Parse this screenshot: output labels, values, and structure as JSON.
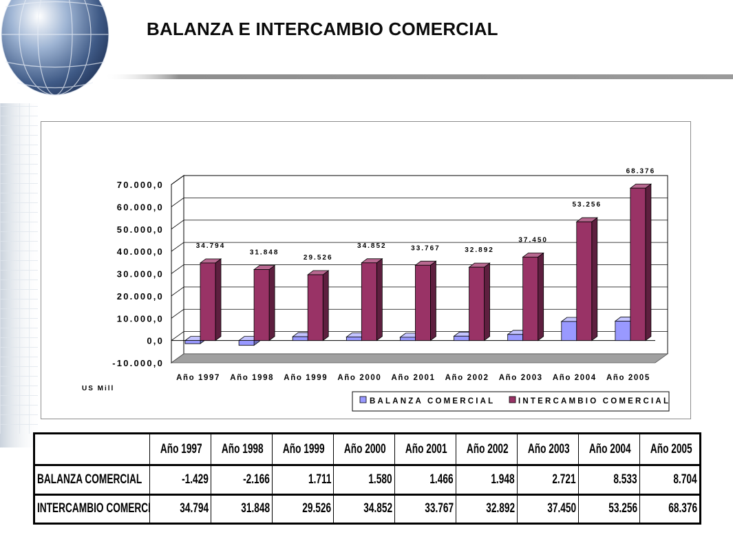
{
  "slide": {
    "title": "BALANZA E INTERCAMBIO COMERCIAL"
  },
  "colors": {
    "balanza": "#9999ff",
    "intercambio": "#993366",
    "floor": "#a0a0a0",
    "accent_bar": "#9a9a9a"
  },
  "chart_data": {
    "type": "bar",
    "title": "",
    "xlabel": "",
    "ylabel": "US Mill",
    "ylim": [
      -10000,
      70000
    ],
    "y_ticks": [
      -10000,
      0,
      10000,
      20000,
      30000,
      40000,
      50000,
      60000,
      70000
    ],
    "y_tick_labels": [
      "-10.000,0",
      "0,0",
      "10.000,0",
      "20.000,0",
      "30.000,0",
      "40.000,0",
      "50.000,0",
      "60.000,0",
      "70.000,0"
    ],
    "grid": true,
    "legend_position": "bottom-right",
    "categories": [
      "Año  1997",
      "Año  1998",
      "Año  1999",
      "Año  2000",
      "Año 2001",
      "Año 2002",
      "Año 2003",
      "Año 2004",
      "Año 2005"
    ],
    "series": [
      {
        "name": "BALANZA COMERCIAL",
        "color": "#9999ff",
        "values": [
          -1429,
          -2166,
          1711,
          1580,
          1466,
          1948,
          2721,
          8533,
          8704
        ]
      },
      {
        "name": "INTERCAMBIO COMERCIAL",
        "color": "#993366",
        "values": [
          34794,
          31848,
          29526,
          34852,
          33767,
          32892,
          37450,
          53256,
          68376
        ],
        "data_labels": [
          "34.794",
          "31.848",
          "29.526",
          "34.852",
          "33.767",
          "32.892",
          "37.450",
          "53.256",
          "68.376"
        ]
      }
    ]
  },
  "table": {
    "columns": [
      "Año   1997",
      "Año   1998",
      "Año   1999",
      "Año   2000",
      "Año 2001",
      "Año 2002",
      "Año 2003",
      "Año 2004",
      "Año 2005"
    ],
    "rows": [
      {
        "label": "BALANZA COMERCIAL",
        "values": [
          "-1.429",
          "-2.166",
          "1.711",
          "1.580",
          "1.466",
          "1.948",
          "2.721",
          "8.533",
          "8.704"
        ]
      },
      {
        "label": "INTERCAMBIO COMERCIAL",
        "values": [
          "34.794",
          "31.848",
          "29.526",
          "34.852",
          "33.767",
          "32.892",
          "37.450",
          "53.256",
          "68.376"
        ]
      }
    ]
  }
}
